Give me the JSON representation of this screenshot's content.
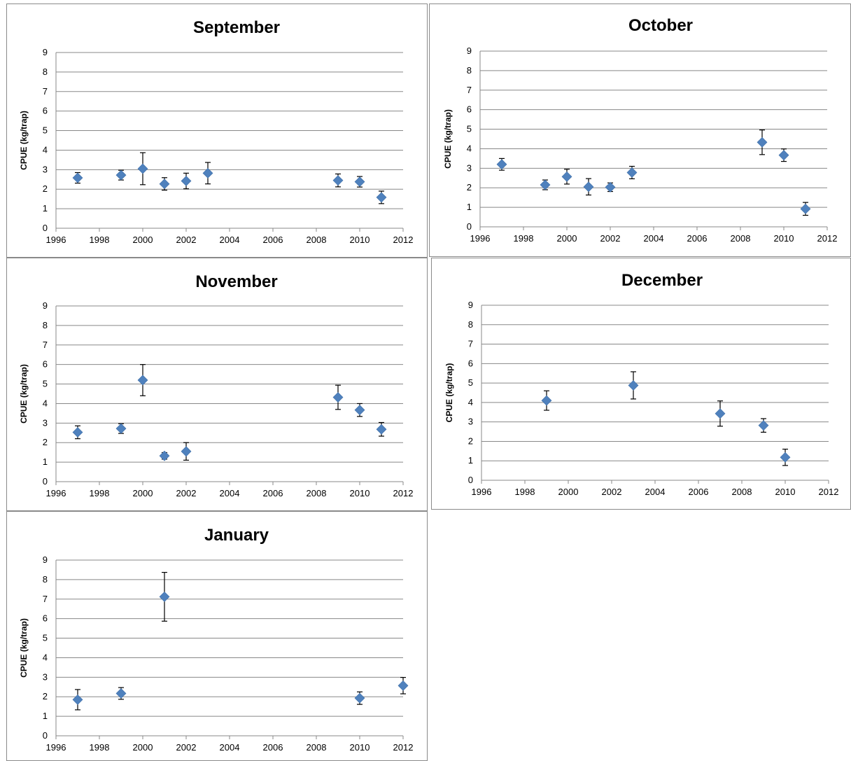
{
  "marker_color": "#4F81BD",
  "chart_data": [
    {
      "type": "scatter",
      "title": "September",
      "xlabel": "",
      "ylabel": "CPUE (kg/trap)",
      "xlim": [
        1996,
        2012
      ],
      "ylim": [
        0,
        9
      ],
      "xticks": [
        "1996",
        "1998",
        "2000",
        "2002",
        "2004",
        "2006",
        "2008",
        "2010",
        "2012"
      ],
      "yticks": [
        "0",
        "1",
        "2",
        "3",
        "4",
        "5",
        "6",
        "7",
        "8",
        "9"
      ],
      "grid": true,
      "x": [
        1997,
        1999,
        2000,
        2001,
        2002,
        2003,
        2009,
        2010,
        2011
      ],
      "y": [
        2.58,
        2.72,
        3.05,
        2.27,
        2.42,
        2.82,
        2.45,
        2.38,
        1.58
      ],
      "err": [
        0.27,
        0.25,
        0.82,
        0.32,
        0.4,
        0.55,
        0.33,
        0.27,
        0.32
      ]
    },
    {
      "type": "scatter",
      "title": "October",
      "xlabel": "",
      "ylabel": "CPUE (kg/trap)",
      "xlim": [
        1996,
        2012
      ],
      "ylim": [
        0,
        9
      ],
      "xticks": [
        "1996",
        "1998",
        "2000",
        "2002",
        "2004",
        "2006",
        "2008",
        "2010",
        "2012"
      ],
      "yticks": [
        "0",
        "1",
        "2",
        "3",
        "4",
        "5",
        "6",
        "7",
        "8",
        "9"
      ],
      "grid": true,
      "x": [
        1997,
        1999,
        2000,
        2001,
        2002,
        2003,
        2009,
        2010,
        2011
      ],
      "y": [
        3.2,
        2.15,
        2.57,
        2.05,
        2.03,
        2.78,
        4.33,
        3.67,
        0.92
      ],
      "err": [
        0.3,
        0.25,
        0.38,
        0.42,
        0.22,
        0.32,
        0.63,
        0.32,
        0.33
      ]
    },
    {
      "type": "scatter",
      "title": "November",
      "xlabel": "",
      "ylabel": "CPUE (kg/trap)",
      "xlim": [
        1996,
        2012
      ],
      "ylim": [
        0,
        9
      ],
      "xticks": [
        "1996",
        "1998",
        "2000",
        "2002",
        "2004",
        "2006",
        "2008",
        "2010",
        "2012"
      ],
      "yticks": [
        "0",
        "1",
        "2",
        "3",
        "4",
        "5",
        "6",
        "7",
        "8",
        "9"
      ],
      "grid": true,
      "x": [
        1997,
        1999,
        2000,
        2001,
        2002,
        2009,
        2010,
        2011
      ],
      "y": [
        2.53,
        2.72,
        5.2,
        1.32,
        1.55,
        4.32,
        3.67,
        2.68
      ],
      "err": [
        0.33,
        0.25,
        0.8,
        0.17,
        0.45,
        0.62,
        0.33,
        0.35
      ]
    },
    {
      "type": "scatter",
      "title": "December",
      "xlabel": "",
      "ylabel": "CPUE (kg/trap)",
      "xlim": [
        1996,
        2012
      ],
      "ylim": [
        0,
        9
      ],
      "xticks": [
        "1996",
        "1998",
        "2000",
        "2002",
        "2004",
        "2006",
        "2008",
        "2010",
        "2012"
      ],
      "yticks": [
        "0",
        "1",
        "2",
        "3",
        "4",
        "5",
        "6",
        "7",
        "8",
        "9"
      ],
      "grid": true,
      "x": [
        1999,
        2003,
        2007,
        2009,
        2010
      ],
      "y": [
        4.1,
        4.88,
        3.43,
        2.82,
        1.18
      ],
      "err": [
        0.5,
        0.7,
        0.65,
        0.35,
        0.42
      ]
    },
    {
      "type": "scatter",
      "title": "January",
      "xlabel": "",
      "ylabel": "CPUE (kg/trap)",
      "xlim": [
        1996,
        2012
      ],
      "ylim": [
        0,
        9
      ],
      "xticks": [
        "1996",
        "1998",
        "2000",
        "2002",
        "2004",
        "2006",
        "2008",
        "2010",
        "2012"
      ],
      "yticks": [
        "0",
        "1",
        "2",
        "3",
        "4",
        "5",
        "6",
        "7",
        "8",
        "9"
      ],
      "grid": true,
      "x": [
        1997,
        1999,
        2001,
        2010,
        2012
      ],
      "y": [
        1.85,
        2.17,
        7.12,
        1.93,
        2.57
      ],
      "err": [
        0.52,
        0.3,
        1.25,
        0.32,
        0.42
      ]
    }
  ]
}
